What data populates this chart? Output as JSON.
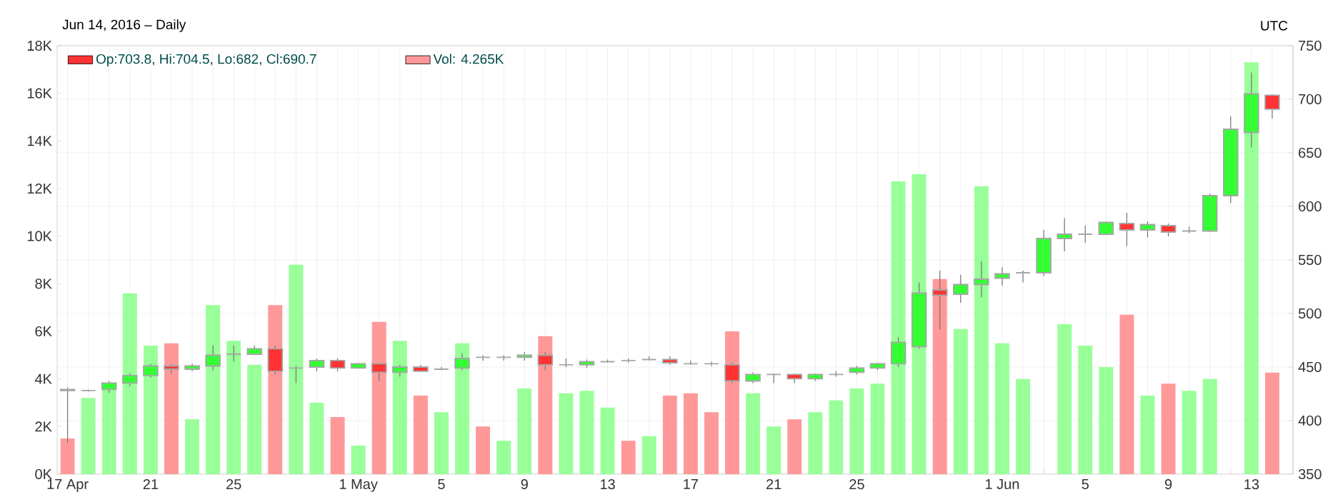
{
  "chart_data": {
    "type": "candlestick",
    "subtitle": "Jun 14, 2016 – Daily",
    "annotations": [
      "UTC"
    ],
    "x": [
      "2016-04-17",
      "2016-04-18",
      "2016-04-19",
      "2016-04-20",
      "2016-04-21",
      "2016-04-22",
      "2016-04-23",
      "2016-04-24",
      "2016-04-25",
      "2016-04-26",
      "2016-04-27",
      "2016-04-28",
      "2016-04-29",
      "2016-04-30",
      "2016-05-01",
      "2016-05-02",
      "2016-05-03",
      "2016-05-04",
      "2016-05-05",
      "2016-05-06",
      "2016-05-07",
      "2016-05-08",
      "2016-05-09",
      "2016-05-10",
      "2016-05-11",
      "2016-05-12",
      "2016-05-13",
      "2016-05-14",
      "2016-05-15",
      "2016-05-16",
      "2016-05-17",
      "2016-05-18",
      "2016-05-19",
      "2016-05-20",
      "2016-05-21",
      "2016-05-22",
      "2016-05-23",
      "2016-05-24",
      "2016-05-25",
      "2016-05-26",
      "2016-05-27",
      "2016-05-28",
      "2016-05-29",
      "2016-05-30",
      "2016-05-31",
      "2016-06-01",
      "2016-06-02",
      "2016-06-03",
      "2016-06-04",
      "2016-06-05",
      "2016-06-06",
      "2016-06-07",
      "2016-06-08",
      "2016-06-09",
      "2016-06-10",
      "2016-06-11",
      "2016-06-12",
      "2016-06-13",
      "2016-06-14"
    ],
    "series": [
      {
        "axis": "y2",
        "name": "Op:703.8, Hi:704.5, Lo:682, Cl:690.7",
        "color": "#ff3333",
        "ohlc": [
          [
            429,
            431,
            379,
            428
          ],
          [
            428,
            429,
            427,
            428
          ],
          [
            429,
            437,
            426,
            435
          ],
          [
            435,
            444,
            432,
            442
          ],
          [
            442,
            453,
            440,
            451
          ],
          [
            451,
            453,
            444,
            448
          ],
          [
            448,
            453,
            446,
            451
          ],
          [
            451,
            470,
            447,
            461
          ],
          [
            462,
            470,
            455,
            462
          ],
          [
            462,
            470,
            462,
            467
          ],
          [
            467,
            470,
            443,
            446
          ],
          [
            449,
            451,
            435,
            449
          ],
          [
            450,
            458,
            446,
            456
          ],
          [
            456,
            458,
            446,
            449
          ],
          [
            449,
            454,
            449,
            453
          ],
          [
            453,
            454,
            437,
            445
          ],
          [
            445,
            452,
            441,
            450
          ],
          [
            450,
            452,
            446,
            446
          ],
          [
            448,
            450,
            447,
            448
          ],
          [
            449,
            463,
            447,
            458
          ],
          [
            459,
            461,
            456,
            459
          ],
          [
            459,
            461,
            456,
            459
          ],
          [
            459,
            464,
            456,
            461
          ],
          [
            461,
            464,
            447,
            452
          ],
          [
            452,
            458,
            450,
            452
          ],
          [
            452,
            457,
            449,
            455
          ],
          [
            455,
            457,
            454,
            455
          ],
          [
            456,
            458,
            454,
            456
          ],
          [
            457,
            460,
            456,
            457
          ],
          [
            457,
            460,
            452,
            454
          ],
          [
            453,
            456,
            452,
            453
          ],
          [
            453,
            455,
            451,
            453
          ],
          [
            452,
            454,
            435,
            437
          ],
          [
            437,
            445,
            435,
            443
          ],
          [
            443,
            444,
            435,
            443
          ],
          [
            443,
            444,
            435,
            439
          ],
          [
            439,
            444,
            437,
            443
          ],
          [
            443,
            446,
            441,
            443
          ],
          [
            445,
            451,
            443,
            449
          ],
          [
            449,
            454,
            447,
            453
          ],
          [
            453,
            478,
            450,
            473
          ],
          [
            469,
            529,
            467,
            519
          ],
          [
            522,
            540,
            485,
            517
          ],
          [
            518,
            536,
            510,
            527
          ],
          [
            527,
            549,
            515,
            532
          ],
          [
            533,
            543,
            526,
            537
          ],
          [
            538,
            540,
            529,
            538
          ],
          [
            538,
            578,
            535,
            570
          ],
          [
            570,
            589,
            558,
            574
          ],
          [
            574,
            582,
            566,
            574
          ],
          [
            574,
            586,
            574,
            585
          ],
          [
            584,
            594,
            563,
            578
          ],
          [
            578,
            586,
            571,
            583
          ],
          [
            582,
            584,
            572,
            576
          ],
          [
            577,
            581,
            575,
            577
          ],
          [
            577,
            612,
            576,
            610
          ],
          [
            610,
            684,
            603,
            672
          ],
          [
            669,
            725,
            655,
            705
          ],
          [
            703.8,
            704.5,
            682,
            690.7
          ]
        ],
        "colors": [
          "#ff3333",
          "#aaaaaa",
          "#33ff33",
          "#33ff33",
          "#33ff33",
          "#ff3333",
          "#33ff33",
          "#33ff33",
          "#aaaaaa",
          "#33ff33",
          "#ff3333",
          "#aaaaaa",
          "#33ff33",
          "#ff3333",
          "#33ff33",
          "#ff3333",
          "#33ff33",
          "#ff3333",
          "#aaaaaa",
          "#33ff33",
          "#aaaaaa",
          "#aaaaaa",
          "#33ff33",
          "#ff3333",
          "#aaaaaa",
          "#33ff33",
          "#aaaaaa",
          "#aaaaaa",
          "#aaaaaa",
          "#ff3333",
          "#aaaaaa",
          "#aaaaaa",
          "#ff3333",
          "#33ff33",
          "#aaaaaa",
          "#ff3333",
          "#33ff33",
          "#aaaaaa",
          "#33ff33",
          "#33ff33",
          "#33ff33",
          "#33ff33",
          "#ff3333",
          "#33ff33",
          "#33ff33",
          "#33ff33",
          "#aaaaaa",
          "#33ff33",
          "#33ff33",
          "#aaaaaa",
          "#33ff33",
          "#ff3333",
          "#33ff33",
          "#ff3333",
          "#aaaaaa",
          "#33ff33",
          "#33ff33",
          "#33ff33",
          "#ff3333"
        ]
      },
      {
        "type": "bar",
        "axis": "y",
        "name": "Vol: 4.265K",
        "color": "#ff9999",
        "values": [
          1.5,
          3.2,
          3.6,
          7.6,
          5.4,
          5.5,
          2.3,
          7.1,
          5.6,
          4.6,
          7.1,
          8.8,
          3.0,
          2.4,
          1.2,
          6.4,
          5.6,
          3.3,
          2.6,
          5.5,
          2.0,
          1.4,
          3.6,
          5.8,
          3.4,
          3.5,
          2.8,
          1.4,
          1.6,
          3.3,
          3.4,
          2.6,
          6.0,
          3.4,
          2.0,
          2.3,
          2.6,
          3.1,
          3.6,
          3.8,
          12.3,
          12.6,
          8.2,
          6.1,
          12.1,
          5.5,
          4.0,
          null,
          6.3,
          5.4,
          4.5,
          6.7,
          3.3,
          3.8,
          3.5,
          4.0,
          null,
          17.3,
          4.265
        ],
        "colors": [
          "#ff9999",
          "#99ff99",
          "#99ff99",
          "#99ff99",
          "#99ff99",
          "#ff9999",
          "#99ff99",
          "#99ff99",
          "#99ff99",
          "#99ff99",
          "#ff9999",
          "#99ff99",
          "#99ff99",
          "#ff9999",
          "#99ff99",
          "#ff9999",
          "#99ff99",
          "#ff9999",
          "#99ff99",
          "#99ff99",
          "#ff9999",
          "#99ff99",
          "#99ff99",
          "#ff9999",
          "#99ff99",
          "#99ff99",
          "#99ff99",
          "#ff9999",
          "#99ff99",
          "#ff9999",
          "#ff9999",
          "#ff9999",
          "#ff9999",
          "#99ff99",
          "#99ff99",
          "#ff9999",
          "#99ff99",
          "#99ff99",
          "#99ff99",
          "#99ff99",
          "#99ff99",
          "#99ff99",
          "#ff9999",
          "#99ff99",
          "#99ff99",
          "#99ff99",
          "#99ff99",
          "#99ff99",
          "#99ff99",
          "#99ff99",
          "#99ff99",
          "#ff9999",
          "#99ff99",
          "#ff9999",
          "#99ff99",
          "#99ff99",
          "#99ff99",
          "#99ff99",
          "#ff9999"
        ]
      }
    ],
    "xlim": [
      "2016-04-16T12:00",
      "2016-06-15T00:00"
    ],
    "xticks": [
      {
        "value": "2016-04-17",
        "label": "17 Apr"
      },
      {
        "value": "2016-04-18",
        "label": null
      },
      {
        "value": "2016-04-19",
        "label": null
      },
      {
        "value": "2016-04-20",
        "label": null
      },
      {
        "value": "2016-04-21",
        "label": "21"
      },
      {
        "value": "2016-04-22",
        "label": null
      },
      {
        "value": "2016-04-23",
        "label": null
      },
      {
        "value": "2016-04-24",
        "label": null
      },
      {
        "value": "2016-04-25",
        "label": "25"
      },
      {
        "value": "2016-04-26",
        "label": null
      },
      {
        "value": "2016-04-27",
        "label": null
      },
      {
        "value": "2016-04-28",
        "label": null
      },
      {
        "value": "2016-04-29",
        "label": null
      },
      {
        "value": "2016-04-30",
        "label": null
      },
      {
        "value": "2016-05-01",
        "label": "1 May"
      },
      {
        "value": "2016-05-02",
        "label": null
      },
      {
        "value": "2016-05-03",
        "label": null
      },
      {
        "value": "2016-05-04",
        "label": null
      },
      {
        "value": "2016-05-05",
        "label": "5"
      },
      {
        "value": "2016-05-06",
        "label": null
      },
      {
        "value": "2016-05-07",
        "label": null
      },
      {
        "value": "2016-05-08",
        "label": null
      },
      {
        "value": "2016-05-09",
        "label": "9"
      },
      {
        "value": "2016-05-10",
        "label": null
      },
      {
        "value": "2016-05-11",
        "label": null
      },
      {
        "value": "2016-05-12",
        "label": null
      },
      {
        "value": "2016-05-13",
        "label": "13"
      },
      {
        "value": "2016-05-14",
        "label": null
      },
      {
        "value": "2016-05-15",
        "label": null
      },
      {
        "value": "2016-05-16",
        "label": null
      },
      {
        "value": "2016-05-17",
        "label": "17"
      },
      {
        "value": "2016-05-18",
        "label": null
      },
      {
        "value": "2016-05-19",
        "label": null
      },
      {
        "value": "2016-05-20",
        "label": null
      },
      {
        "value": "2016-05-21",
        "label": "21"
      },
      {
        "value": "2016-05-22",
        "label": null
      },
      {
        "value": "2016-05-23",
        "label": null
      },
      {
        "value": "2016-05-24",
        "label": null
      },
      {
        "value": "2016-05-25",
        "label": "25"
      },
      {
        "value": "2016-05-26",
        "label": null
      },
      {
        "value": "2016-05-27",
        "label": null
      },
      {
        "value": "2016-05-28",
        "label": null
      },
      {
        "value": "2016-05-29",
        "label": null
      },
      {
        "value": "2016-05-30",
        "label": null
      },
      {
        "value": "2016-05-31",
        "label": null
      },
      {
        "value": "2016-06-01",
        "label": "1 Jun"
      },
      {
        "value": "2016-06-02",
        "label": null
      },
      {
        "value": "2016-06-03",
        "label": null
      },
      {
        "value": "2016-06-04",
        "label": null
      },
      {
        "value": "2016-06-05",
        "label": "5"
      },
      {
        "value": "2016-06-06",
        "label": null
      },
      {
        "value": "2016-06-07",
        "label": null
      },
      {
        "value": "2016-06-08",
        "label": null
      },
      {
        "value": "2016-06-09",
        "label": "9"
      },
      {
        "value": "2016-06-10",
        "label": null
      },
      {
        "value": "2016-06-11",
        "label": null
      },
      {
        "value": "2016-06-12",
        "label": null
      },
      {
        "value": "2016-06-13",
        "label": "13"
      },
      {
        "value": "2016-06-14",
        "label": null
      }
    ],
    "ylim": [
      0,
      18
    ],
    "yticks": [
      {
        "value": 0,
        "label": "0K"
      },
      {
        "value": 2,
        "label": "2K"
      },
      {
        "value": 4,
        "label": "4K"
      },
      {
        "value": 6,
        "label": "6K"
      },
      {
        "value": 8,
        "label": "8K"
      },
      {
        "value": 10,
        "label": "10K"
      },
      {
        "value": 12,
        "label": "12K"
      },
      {
        "value": 14,
        "label": "14K"
      },
      {
        "value": 16,
        "label": "16K"
      },
      {
        "value": 18,
        "label": "18K"
      }
    ],
    "y2lim": [
      350,
      750
    ],
    "y2ticks": [
      350,
      400,
      450,
      500,
      550,
      600,
      650,
      700,
      750
    ],
    "grid": true,
    "legend": "top left"
  }
}
